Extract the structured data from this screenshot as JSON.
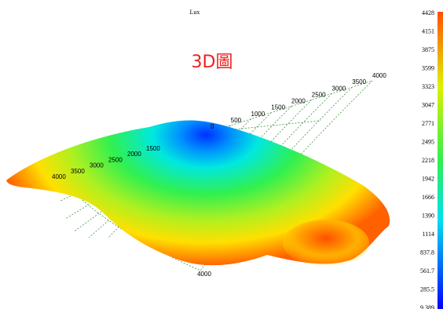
{
  "header": {
    "title": "Lux"
  },
  "overlay": {
    "label": "3D圖"
  },
  "axis_upper": {
    "labels": [
      "0",
      "500",
      "1000",
      "1500",
      "2000",
      "2500",
      "3000",
      "3500",
      "4000"
    ]
  },
  "axis_left": {
    "labels": [
      "1500",
      "2000",
      "2500",
      "3000",
      "3500",
      "4000"
    ]
  },
  "axis_bottom": {
    "label": "4000"
  },
  "colorbar": {
    "labels": [
      "4428",
      "4151",
      "3875",
      "3599",
      "3323",
      "3047",
      "2771",
      "2495",
      "2218",
      "1942",
      "1666",
      "1390",
      "1114",
      "837.8",
      "561.7",
      "285.5",
      "9.389"
    ]
  }
}
